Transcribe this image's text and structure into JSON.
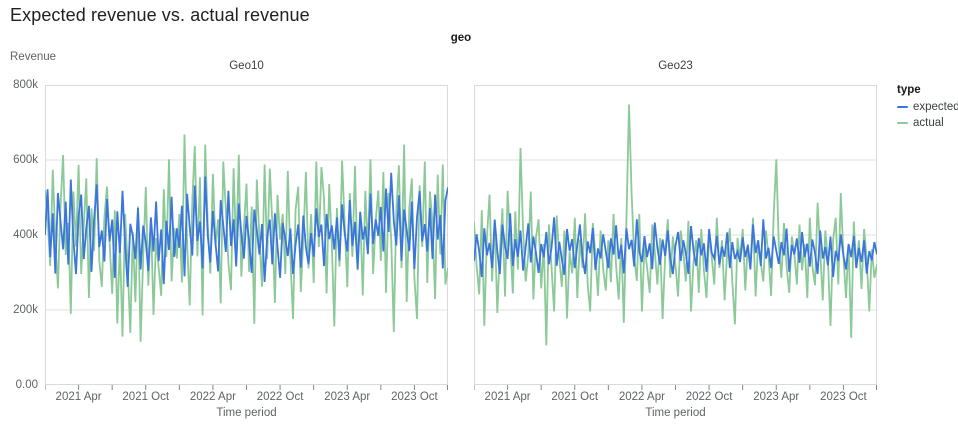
{
  "page": {
    "title": "Expected revenue vs. actual revenue"
  },
  "colors": {
    "expected": "#3a76dd",
    "actual": "#8cc998",
    "grid": "#e2e2e2",
    "border": "#d9dadc",
    "tick": "#80868b",
    "axis_text": "#5f6368"
  },
  "chart_data": {
    "type": "line",
    "title": "Expected revenue vs. actual revenue",
    "facet_field": "geo",
    "legend": {
      "title": "type",
      "entries": [
        {
          "label": "expected",
          "color": "#3a76dd"
        },
        {
          "label": "actual",
          "color": "#8cc998"
        }
      ]
    },
    "y_axis": {
      "title": "Revenue",
      "unit": "thousands",
      "max_k": 800,
      "ticks": [
        {
          "value_k": 0,
          "text": "0.00"
        },
        {
          "value_k": 200,
          "text": "200k"
        },
        {
          "value_k": 400,
          "text": "400k"
        },
        {
          "value_k": 600,
          "text": "600k"
        },
        {
          "value_k": 800,
          "text": "800k"
        }
      ],
      "grid_values_k": [
        200,
        400,
        600
      ]
    },
    "x_axis": {
      "title": "Time period",
      "total_weeks": 156,
      "start": "2021 Jan",
      "end": "2024 Jan",
      "tick_weeks": [
        0,
        13,
        26,
        39,
        52,
        65,
        78,
        91,
        104,
        117,
        130,
        143,
        156
      ],
      "labels": [
        {
          "week": 13,
          "text": "2021 Apr"
        },
        {
          "week": 39,
          "text": "2021 Oct"
        },
        {
          "week": 65,
          "text": "2022 Apr"
        },
        {
          "week": 91,
          "text": "2022 Oct"
        },
        {
          "week": 117,
          "text": "2023 Apr"
        },
        {
          "week": 143,
          "text": "2023 Oct"
        }
      ]
    },
    "facets": [
      {
        "name": "Geo10",
        "series": [
          {
            "name": "expected",
            "values_k": [
              400,
              522,
              341,
              458,
              297,
              512,
              438,
              362,
              489,
              321,
              548,
              387,
              296,
              452,
              508,
              336,
              419,
              478,
              302,
              441,
              535,
              368,
              412,
              329,
              496,
              383,
              441,
              286,
              463,
              352,
              518,
              374,
              262,
              430,
              397,
              336,
              472,
              308,
              425,
              381,
              304,
              447,
              356,
              489,
              331,
              415,
              269,
              438,
              360,
              502,
              342,
              418,
              366,
              478,
              290,
              510,
              422,
              345,
              532,
              384,
              436,
              311,
              556,
              398,
              327,
              464,
              379,
              303,
              493,
              426,
              355,
              518,
              371,
              442,
              316,
              484,
              406,
              337,
              451,
              382,
              299,
              468,
              414,
              348,
              429,
              275,
              396,
              441,
              322,
              458,
              370,
              286,
              432,
              389,
              344,
              417,
              296,
              375,
              428,
              313,
              452,
              367,
              322,
              405,
              342,
              471,
              395,
              428,
              317,
              456,
              389,
              426,
              361,
              447,
              332,
              482,
              404,
              356,
              493,
              371,
              435,
              309,
              462,
              388,
              423,
              349,
              511,
              376,
              442,
              398,
              475,
              356,
              524,
              408,
              566,
              437,
              372,
              506,
              331,
              468,
              412,
              357,
              489,
              309,
              447,
              517,
              383,
              429,
              356,
              472,
              336,
              508,
              388,
              453,
              311,
              492,
              527
            ]
          },
          {
            "name": "actual",
            "values_k": [
              519,
              446,
              318,
              574,
              392,
              258,
              476,
              613,
              347,
              432,
              190,
              516,
              369,
              587,
              296,
              428,
              551,
              232,
              471,
              358,
              605,
              331,
              262,
              448,
              529,
              381,
              243,
              466,
              164,
              382,
              129,
              456,
              318,
              139,
              408,
              221,
              476,
              115,
              342,
              528,
              265,
              446,
              187,
              392,
              312,
              238,
              522,
              341,
              602,
              276,
              419,
              337,
              456,
              274,
              668,
              381,
              212,
              491,
              637,
              343,
              554,
              186,
              641,
              427,
              297,
              563,
              372,
              442,
              218,
              596,
              468,
              326,
              253,
              578,
              356,
              614,
              289,
              419,
              537,
              302,
              476,
              163,
              548,
              391,
              262,
              588,
              336,
              577,
              432,
              219,
              507,
              388,
              456,
              296,
              571,
              337,
              176,
              468,
              529,
              248,
              391,
              568,
              311,
              456,
              272,
              596,
              368,
              581,
              498,
              244,
              536,
              377,
              156,
              472,
              316,
              598,
              431,
              261,
              512,
              342,
              584,
              306,
              456,
              239,
              518,
              361,
              602,
              296,
              438,
              519,
              331,
              568,
              246,
              512,
              389,
              141,
              468,
              586,
              312,
              641,
              221,
              472,
              551,
              286,
              176,
              532,
              368,
              596,
              272,
              516,
              432,
              229,
              561,
              348,
              588,
              268,
              312
            ]
          }
        ]
      },
      {
        "name": "Geo23",
        "series": [
          {
            "name": "expected",
            "values_k": [
              331,
              402,
              356,
              288,
              418,
              346,
              379,
              312,
              441,
              358,
              296,
              428,
              371,
              336,
              458,
              317,
              389,
              342,
              412,
              305,
              368,
              431,
              327,
              396,
              352,
              299,
              376,
              341,
              408,
              322,
              365,
              447,
              318,
              382,
              336,
              294,
              416,
              358,
              389,
              312,
              372,
              428,
              341,
              296,
              383,
              352,
              419,
              307,
              364,
              338,
              402,
              356,
              312,
              391,
              348,
              426,
              336,
              374,
              298,
              418,
              362,
              387,
              316,
              442,
              356,
              328,
              397,
              341,
              378,
              309,
              433,
              366,
              321,
              388,
              344,
              412,
              337,
              296,
              372,
              408,
              331,
              386,
              352,
              296,
              424,
              357,
              318,
              392,
              346,
              378,
              302,
              416,
              353,
              337,
              398,
              321,
              369,
              342,
              407,
              312,
              381,
              336,
              356,
              328,
              394,
              341,
              372,
              308,
              428,
              352,
              386,
              318,
              442,
              337,
              366,
              312,
              396,
              358,
              323,
              381,
              346,
              417,
              302,
              373,
              348,
              391,
              326,
              408,
              342,
              377,
              316,
              388,
              352,
              296,
              412,
              337,
              368,
              319,
              396,
              288,
              358,
              331,
              402,
              346,
              308,
              376,
              341,
              398,
              312,
              366,
              328,
              386,
              297,
              357,
              332,
              381,
              348
            ]
          },
          {
            "name": "actual",
            "values_k": [
              436,
              318,
              242,
              466,
              158,
              392,
              508,
              276,
              438,
              192,
              352,
              471,
              236,
              518,
              386,
              244,
              463,
              308,
              632,
              412,
              276,
              348,
              516,
              228,
              394,
              442,
              258,
              376,
              106,
              428,
              316,
              196,
              452,
              338,
              262,
              412,
              178,
              356,
              298,
              446,
              232,
              388,
              312,
              458,
              266,
              196,
              432,
              346,
              238,
              412,
              308,
              252,
              386,
              274,
              456,
              318,
              228,
              392,
              166,
              436,
              748,
              512,
              341,
              278,
              456,
              196,
              372,
              312,
              246,
              428,
              356,
              268,
              392,
              176,
              348,
              442,
              286,
              396,
              318,
              236,
              412,
              356,
              276,
              438,
              196,
              332,
              386,
              246,
              416,
              306,
              232,
              396,
              342,
              268,
              446,
              312,
              386,
              226,
              356,
              418,
              276,
              162,
              392,
              336,
              416,
              252,
              376,
              318,
              446,
              236,
              386,
              326,
              276,
              412,
              346,
              238,
              456,
              602,
              372,
              286,
              432,
              316,
              246,
              396,
              352,
              268,
              428,
              306,
              376,
              232,
              446,
              316,
              266,
              486,
              356,
              226,
              412,
              336,
              158,
              386,
              446,
              268,
              512,
              346,
              232,
              376,
              126,
              436,
              312,
              386,
              256,
              416,
              336,
              196,
              362,
              286,
              322
            ]
          }
        ]
      }
    ]
  }
}
